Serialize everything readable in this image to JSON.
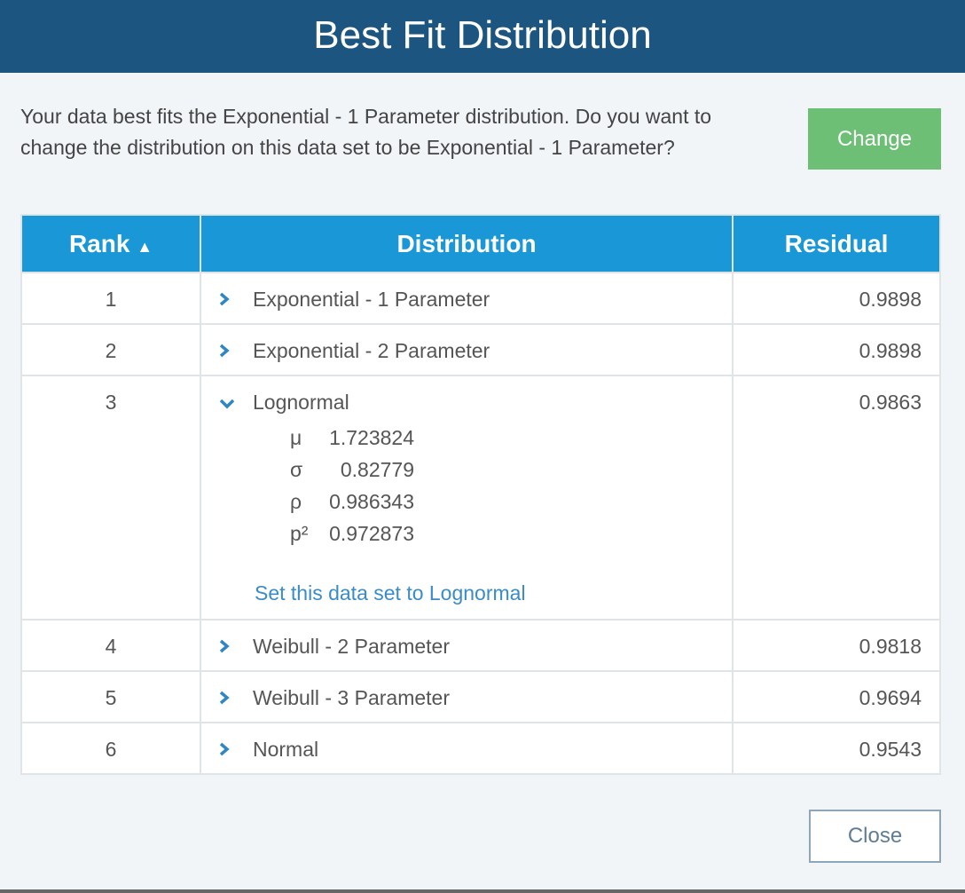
{
  "title": "Best Fit Distribution",
  "message": "Your data best fits the Exponential - 1 Parameter distribution. Do you want to change the distribution on this data set to be Exponential - 1 Parameter?",
  "change_label": "Change",
  "close_label": "Close",
  "table": {
    "headers": {
      "rank": "Rank",
      "rank_sort_icon": "▲",
      "distribution": "Distribution",
      "residual": "Residual"
    },
    "rows": [
      {
        "rank": "1",
        "distribution": "Exponential - 1 Parameter",
        "residual": "0.9898",
        "expanded": false
      },
      {
        "rank": "2",
        "distribution": "Exponential - 2 Parameter",
        "residual": "0.9898",
        "expanded": false
      },
      {
        "rank": "3",
        "distribution": "Lognormal",
        "residual": "0.9863",
        "expanded": true,
        "params": [
          {
            "sym": "μ",
            "val": "1.723824"
          },
          {
            "sym": "σ",
            "val": "0.82779"
          },
          {
            "sym": "ρ",
            "val": "0.986343"
          },
          {
            "sym": "p²",
            "val": "0.972873"
          }
        ],
        "link": "Set this data set to Lognormal"
      },
      {
        "rank": "4",
        "distribution": "Weibull - 2 Parameter",
        "residual": "0.9818",
        "expanded": false
      },
      {
        "rank": "5",
        "distribution": "Weibull - 3 Parameter",
        "residual": "0.9694",
        "expanded": false
      },
      {
        "rank": "6",
        "distribution": "Normal",
        "residual": "0.9543",
        "expanded": false
      }
    ]
  }
}
